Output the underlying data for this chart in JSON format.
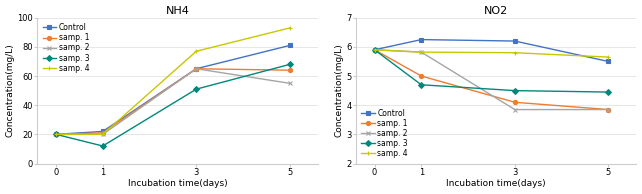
{
  "nh4": {
    "title": "NH4",
    "xlabel": "Incubation time(days)",
    "ylabel": "Concentration(mg/L)",
    "x": [
      0,
      1,
      3,
      5
    ],
    "series": [
      {
        "label": "Control",
        "color": "#4472c4",
        "marker": "s",
        "values": [
          20,
          22,
          65,
          81
        ]
      },
      {
        "label": "samp. 1",
        "color": "#ed7d31",
        "marker": "o",
        "values": [
          20,
          21,
          65,
          64
        ]
      },
      {
        "label": "samp. 2",
        "color": "#a5a5a5",
        "marker": "x",
        "values": [
          20,
          20,
          65,
          55
        ]
      },
      {
        "label": "samp. 3",
        "color": "#00897b",
        "marker": "D",
        "values": [
          20,
          12,
          51,
          68
        ]
      },
      {
        "label": "samp. 4",
        "color": "#c8c800",
        "marker": "+",
        "values": [
          20,
          20,
          77,
          93
        ]
      }
    ],
    "ylim": [
      0,
      100
    ],
    "yticks": [
      0,
      20,
      40,
      60,
      80,
      100
    ],
    "legend_loc": "upper left",
    "legend_bbox": null
  },
  "no2": {
    "title": "NO2",
    "xlabel": "Incubation time(days)",
    "ylabel": "Concentration(mg/L)",
    "x": [
      0,
      1,
      3,
      5
    ],
    "series": [
      {
        "label": "Control",
        "color": "#4472c4",
        "marker": "s",
        "values": [
          5.9,
          6.25,
          6.2,
          5.5
        ]
      },
      {
        "label": "samp. 1",
        "color": "#ed7d31",
        "marker": "o",
        "values": [
          5.9,
          5.0,
          4.1,
          3.85
        ]
      },
      {
        "label": "samp. 2",
        "color": "#a5a5a5",
        "marker": "x",
        "values": [
          5.9,
          5.82,
          3.85,
          3.85
        ]
      },
      {
        "label": "samp. 3",
        "color": "#00897b",
        "marker": "D",
        "values": [
          5.9,
          4.7,
          4.5,
          4.45
        ]
      },
      {
        "label": "samp. 4",
        "color": "#c8c800",
        "marker": "+",
        "values": [
          5.9,
          5.82,
          5.8,
          5.65
        ]
      }
    ],
    "ylim": [
      2,
      7
    ],
    "yticks": [
      2,
      3,
      4,
      5,
      6,
      7
    ],
    "legend_loc": "lower left",
    "legend_bbox": null
  },
  "bg_color": "#ffffff",
  "legend_fontsize": 5.5,
  "axis_label_fontsize": 6.5,
  "title_fontsize": 8,
  "tick_fontsize": 6,
  "linewidth": 1.0,
  "markersize": 3.0
}
